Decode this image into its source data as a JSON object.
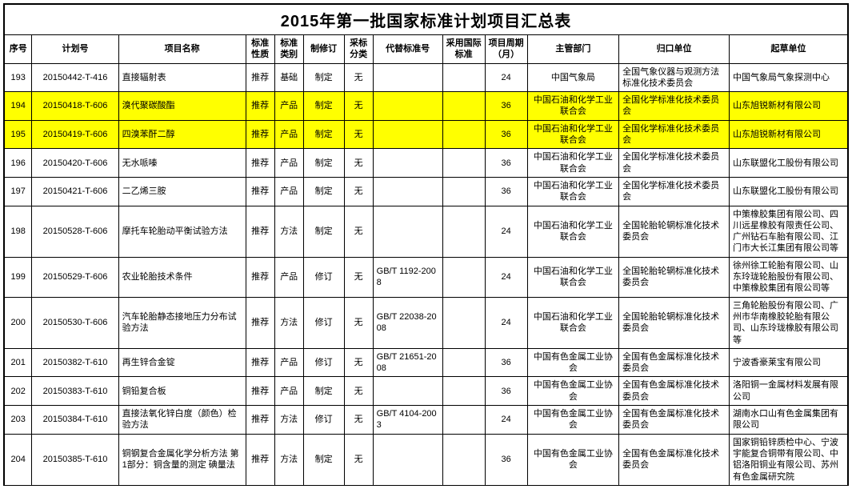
{
  "title": "2015年第一批国家标准计划项目汇总表",
  "columns": [
    "序号",
    "计划号",
    "项目名称",
    "标准性质",
    "标准类别",
    "制修订",
    "采标分类",
    "代替标准号",
    "采用国际标准",
    "项目周期（月）",
    "主管部门",
    "归口单位",
    "起草单位"
  ],
  "highlightRows": [
    1,
    2
  ],
  "rows": [
    [
      "193",
      "20150442-T-416",
      "直接辐射表",
      "推荐",
      "基础",
      "制定",
      "无",
      "",
      "",
      "24",
      "中国气象局",
      "全国气象仪器与观测方法标准化技术委员会",
      "中国气象局气象探测中心"
    ],
    [
      "194",
      "20150418-T-606",
      "溴代聚碳酸酯",
      "推荐",
      "产品",
      "制定",
      "无",
      "",
      "",
      "36",
      "中国石油和化学工业联合会",
      "全国化学标准化技术委员会",
      "山东旭锐新材有限公司"
    ],
    [
      "195",
      "20150419-T-606",
      "四溴苯酐二醇",
      "推荐",
      "产品",
      "制定",
      "无",
      "",
      "",
      "36",
      "中国石油和化学工业联合会",
      "全国化学标准化技术委员会",
      "山东旭锐新材有限公司"
    ],
    [
      "196",
      "20150420-T-606",
      "无水哌嗪",
      "推荐",
      "产品",
      "制定",
      "无",
      "",
      "",
      "36",
      "中国石油和化学工业联合会",
      "全国化学标准化技术委员会",
      "山东联盟化工股份有限公司"
    ],
    [
      "197",
      "20150421-T-606",
      "二乙烯三胺",
      "推荐",
      "产品",
      "制定",
      "无",
      "",
      "",
      "36",
      "中国石油和化学工业联合会",
      "全国化学标准化技术委员会",
      "山东联盟化工股份有限公司"
    ],
    [
      "198",
      "20150528-T-606",
      "摩托车轮胎动平衡试验方法",
      "推荐",
      "方法",
      "制定",
      "无",
      "",
      "",
      "24",
      "中国石油和化学工业联合会",
      "全国轮胎轮辋标准化技术委员会",
      "中策橡胶集团有限公司、四川远星橡胶有限责任公司、广州钻石车胎有限公司、江门市大长江集团有限公司等"
    ],
    [
      "199",
      "20150529-T-606",
      "农业轮胎技术条件",
      "推荐",
      "产品",
      "修订",
      "无",
      "GB/T 1192-2008",
      "",
      "24",
      "中国石油和化学工业联合会",
      "全国轮胎轮辋标准化技术委员会",
      "徐州徐工轮胎有限公司、山东玲珑轮胎股份有限公司、中策橡胶集团有限公司等"
    ],
    [
      "200",
      "20150530-T-606",
      "汽车轮胎静态接地压力分布试验方法",
      "推荐",
      "方法",
      "修订",
      "无",
      "GB/T 22038-2008",
      "",
      "24",
      "中国石油和化学工业联合会",
      "全国轮胎轮辋标准化技术委员会",
      "三角轮胎股份有限公司、广州市华南橡胶轮胎有限公司、山东玲珑橡胶有限公司等"
    ],
    [
      "201",
      "20150382-T-610",
      "再生锌合金锭",
      "推荐",
      "产品",
      "修订",
      "无",
      "GB/T 21651-2008",
      "",
      "36",
      "中国有色金属工业协会",
      "全国有色金属标准化技术委员会",
      "宁波香豪莱宝有限公司"
    ],
    [
      "202",
      "20150383-T-610",
      "铜铅复合板",
      "推荐",
      "产品",
      "制定",
      "无",
      "",
      "",
      "36",
      "中国有色金属工业协会",
      "全国有色金属标准化技术委员会",
      "洛阳铜一金属材料发展有限公司"
    ],
    [
      "203",
      "20150384-T-610",
      "直接法氧化锌白度（颜色）检验方法",
      "推荐",
      "方法",
      "修订",
      "无",
      "GB/T 4104-2003",
      "",
      "24",
      "中国有色金属工业协会",
      "全国有色金属标准化技术委员会",
      "湖南水口山有色金属集团有限公司"
    ],
    [
      "204",
      "20150385-T-610",
      "铜钢复合金属化学分析方法 第1部分：铜含量的测定 碘量法",
      "推荐",
      "方法",
      "制定",
      "无",
      "",
      "",
      "36",
      "中国有色金属工业协会",
      "全国有色金属标准化技术委员会",
      "国家铜铅锌质检中心、宁波宇能复合铜带有限公司、中铝洛阳铜业有限公司、苏州有色金属研究院"
    ]
  ]
}
